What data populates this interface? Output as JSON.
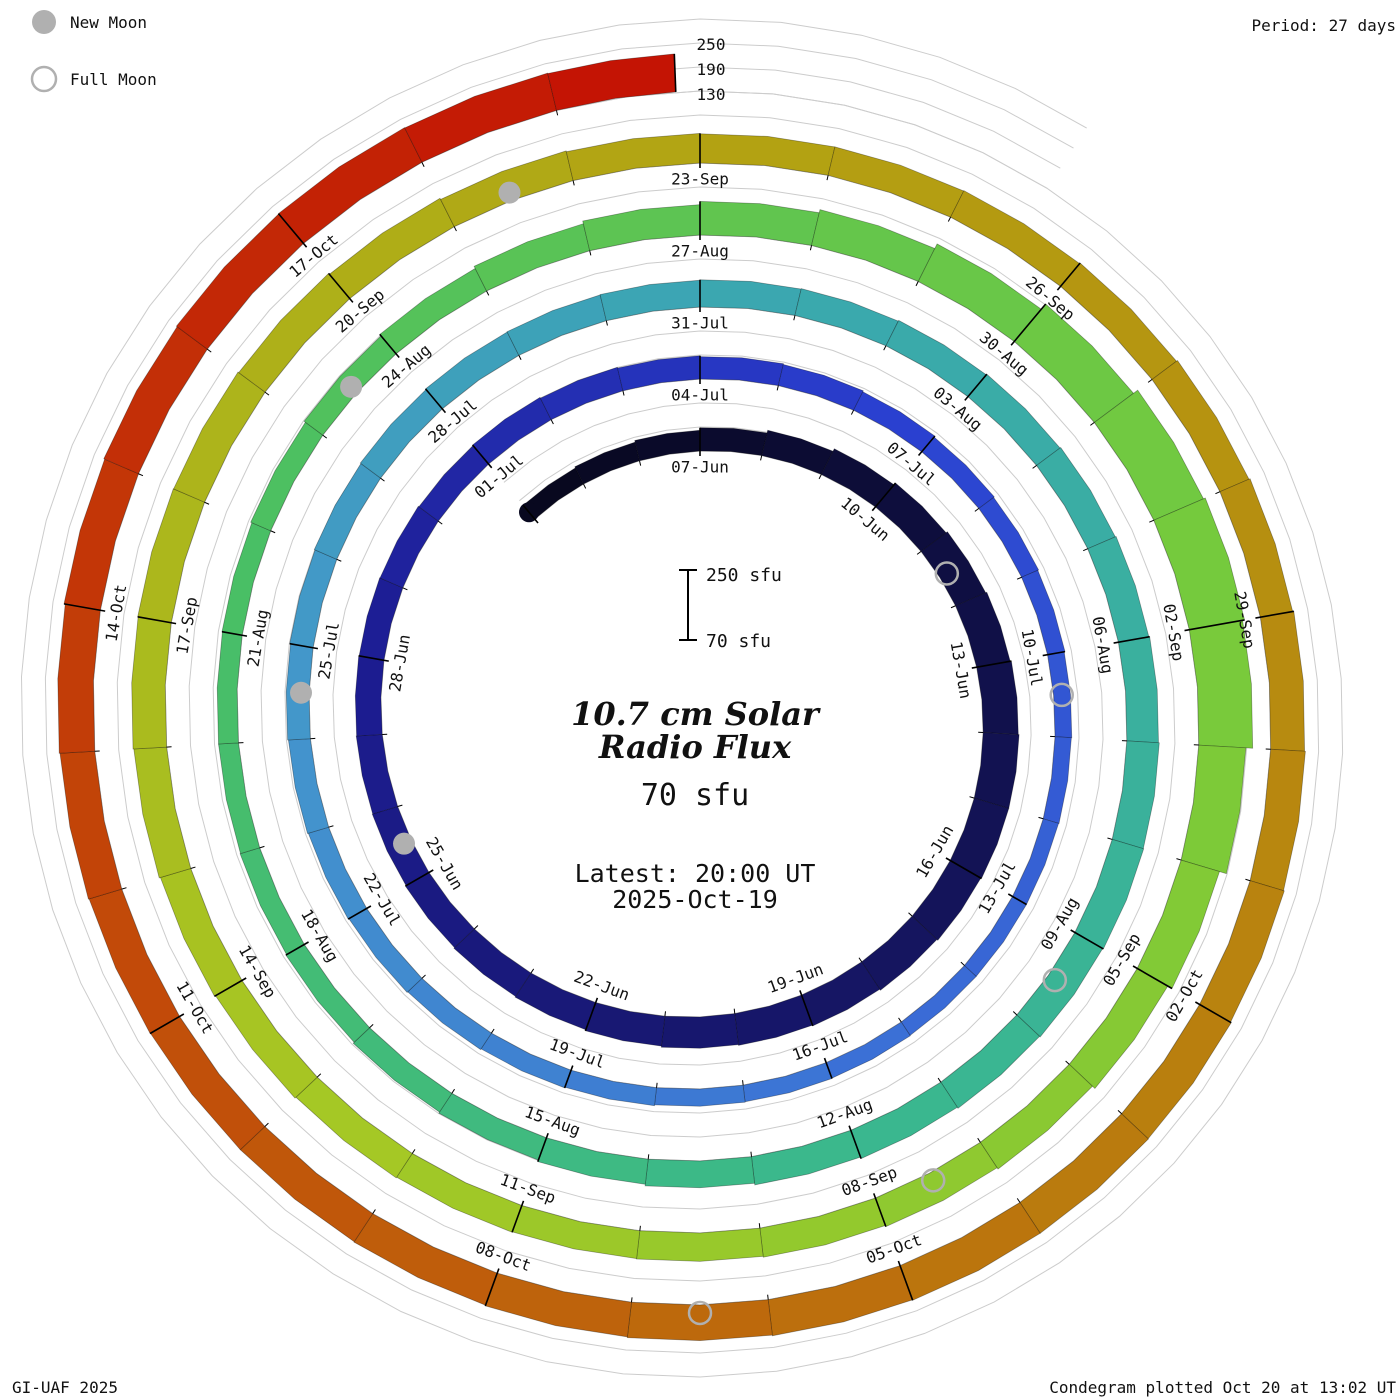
{
  "legend": {
    "new_moon_label": "New Moon",
    "full_moon_label": "Full Moon"
  },
  "period_label": "Period: 27 days",
  "credit": "GI-UAF 2025",
  "footer": "Condegram plotted Oct 20 at 13:02 UT",
  "radial_scale_labels": [
    "250",
    "190",
    "130"
  ],
  "scalebar": {
    "top_label": "250 sfu",
    "bottom_label": "70 sfu"
  },
  "center": {
    "title_line1": "10.7 cm Solar",
    "title_line2": "Radio Flux",
    "baseline_label": "70 sfu",
    "latest_line1": "Latest: 20:00 UT",
    "latest_line2": "2025-Oct-19"
  },
  "colors": {
    "accent_red": "#df3a2b",
    "text_black": "#111111",
    "grid_gray": "#cccccc",
    "moon_gray": "#b0b0b0",
    "separator_black": "#000000"
  },
  "chart_data": {
    "type": "spiral_area_condegram",
    "title": "10.7 cm Solar Radio Flux",
    "units": "sfu",
    "baseline_sfu": 70,
    "gridline_levels_sfu": [
      130,
      190,
      250
    ],
    "rotation_period_days": 27,
    "daily_start_date": "2025-06-04",
    "end_date": "2025-10-19",
    "latest_time": "20:00 UT",
    "daily_flux_sfu": [
      115,
      118,
      122,
      128,
      135,
      142,
      148,
      152,
      155,
      158,
      160,
      160,
      158,
      155,
      152,
      150,
      148,
      145,
      142,
      140,
      138,
      136,
      135,
      134,
      133,
      132,
      130,
      132,
      130,
      128,
      126,
      124,
      121,
      118,
      116,
      114,
      112,
      111,
      110,
      110,
      110,
      111,
      112,
      113,
      115,
      117,
      119,
      121,
      123,
      125,
      127,
      129,
      131,
      133,
      135,
      136,
      137,
      138,
      139,
      141,
      143,
      145,
      147,
      149,
      151,
      152,
      150,
      148,
      145,
      141,
      137,
      133,
      129,
      126,
      123,
      121,
      120,
      120,
      121,
      124,
      128,
      133,
      139,
      146,
      154,
      162,
      175,
      192,
      205,
      210,
      205,
      188,
      170,
      158,
      150,
      146,
      143,
      141,
      140,
      141,
      143,
      146,
      149,
      152,
      154,
      155,
      154,
      152,
      149,
      146,
      144,
      143,
      143,
      144,
      146,
      149,
      152,
      155,
      157,
      159,
      161,
      162,
      162,
      161,
      159,
      157,
      155,
      154,
      154,
      155,
      157,
      159,
      162,
      164,
      166,
      167,
      166,
      165
    ],
    "tick_labels": [
      "07-Jun",
      "10-Jun",
      "13-Jun",
      "16-Jun",
      "19-Jun",
      "22-Jun",
      "25-Jun",
      "28-Jun",
      "01-Jul",
      "04-Jul",
      "07-Jul",
      "10-Jul",
      "13-Jul",
      "16-Jul",
      "19-Jul",
      "22-Jul",
      "25-Jul",
      "28-Jul",
      "31-Jul",
      "03-Aug",
      "06-Aug",
      "09-Aug",
      "12-Aug",
      "15-Aug",
      "18-Aug",
      "21-Aug",
      "24-Aug",
      "27-Aug",
      "30-Aug",
      "02-Sep",
      "05-Sep",
      "08-Sep",
      "11-Sep",
      "14-Sep",
      "17-Sep",
      "20-Sep",
      "23-Sep",
      "26-Sep",
      "29-Sep",
      "02-Oct",
      "05-Oct",
      "08-Oct",
      "11-Oct",
      "14-Oct",
      "17-Oct"
    ],
    "new_moons": [
      "2025-06-25",
      "2025-07-24",
      "2025-08-23",
      "2025-09-21"
    ],
    "full_moons": [
      "2025-06-11",
      "2025-07-10",
      "2025-08-09",
      "2025-09-07",
      "2025-10-06"
    ],
    "colormap_stops": [
      [
        0.0,
        "#08081f"
      ],
      [
        0.087,
        "#14145a"
      ],
      [
        0.174,
        "#1d1d94"
      ],
      [
        0.232,
        "#2a3fd0"
      ],
      [
        0.297,
        "#3b6fd6"
      ],
      [
        0.362,
        "#4496cc"
      ],
      [
        0.42,
        "#3aa8ae"
      ],
      [
        0.5,
        "#3ab88e"
      ],
      [
        0.572,
        "#4abf63"
      ],
      [
        0.652,
        "#76ca3c"
      ],
      [
        0.732,
        "#a6c824"
      ],
      [
        0.812,
        "#b3a112"
      ],
      [
        0.884,
        "#ba7b0e"
      ],
      [
        0.942,
        "#c24a09"
      ],
      [
        1.0,
        "#c41404"
      ]
    ]
  }
}
